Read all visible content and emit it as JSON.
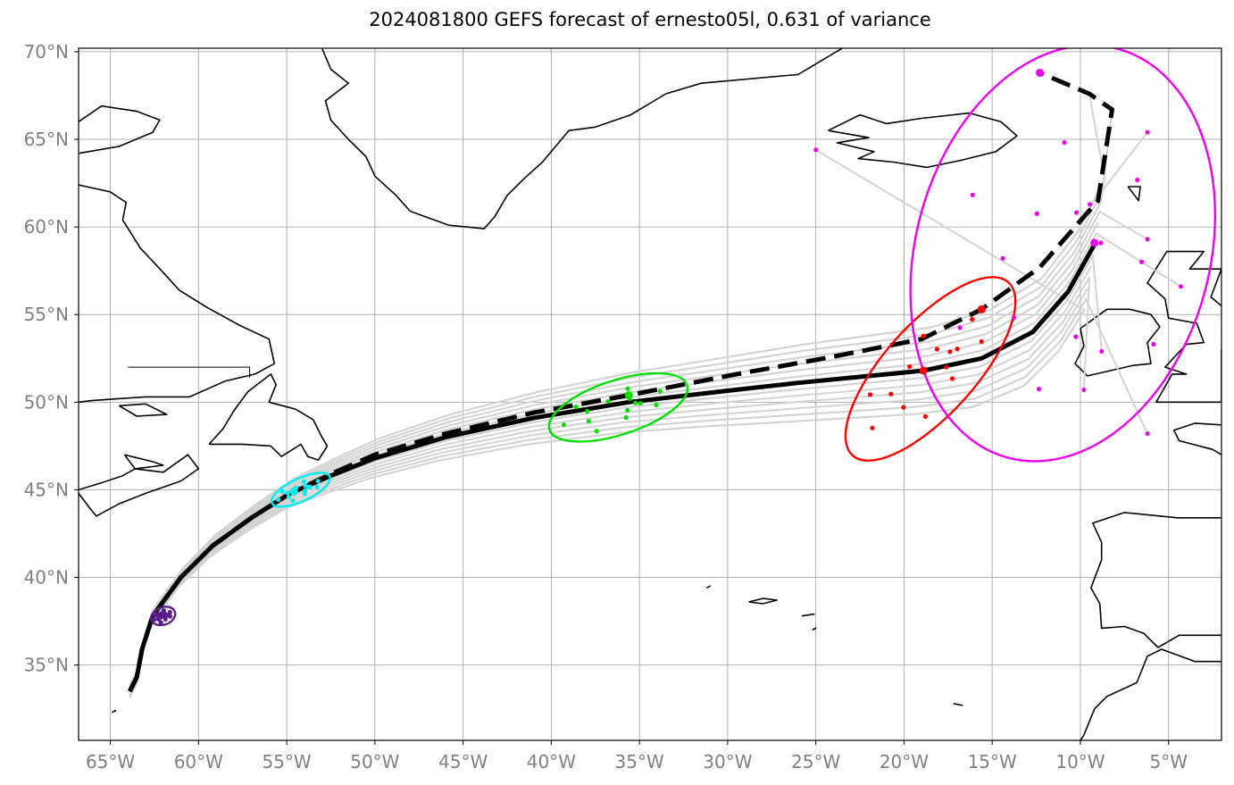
{
  "chart_data": {
    "type": "line",
    "title": "2024081800 GEFS forecast of ernesto05l, 0.631 of variance",
    "projection": "equirectangular",
    "xlim": [
      -66.8,
      -2.0
    ],
    "ylim": [
      30.7,
      70.2
    ],
    "grid": true,
    "colors": {
      "ensemble": "#d3d3d3",
      "mode1": "#000000",
      "mode2": "#000000",
      "coast": "#000000",
      "grid": "#b0b0b0",
      "tick": "#808080"
    },
    "x_ticks": [
      {
        "value": -65,
        "label": "65°W"
      },
      {
        "value": -60,
        "label": "60°W"
      },
      {
        "value": -55,
        "label": "55°W"
      },
      {
        "value": -50,
        "label": "50°W"
      },
      {
        "value": -45,
        "label": "45°W"
      },
      {
        "value": -40,
        "label": "40°W"
      },
      {
        "value": -35,
        "label": "35°W"
      },
      {
        "value": -30,
        "label": "30°W"
      },
      {
        "value": -25,
        "label": "25°W"
      },
      {
        "value": -20,
        "label": "20°W"
      },
      {
        "value": -15,
        "label": "15°W"
      },
      {
        "value": -10,
        "label": "10°W"
      },
      {
        "value": -5,
        "label": "5°W"
      }
    ],
    "y_ticks": [
      {
        "value": 35,
        "label": "35°N"
      },
      {
        "value": 40,
        "label": "40°N"
      },
      {
        "value": 45,
        "label": "45°N"
      },
      {
        "value": 50,
        "label": "50°N"
      },
      {
        "value": 55,
        "label": "55°N"
      },
      {
        "value": 60,
        "label": "60°N"
      },
      {
        "value": 65,
        "label": "65°N"
      },
      {
        "value": 70,
        "label": "70°N"
      }
    ],
    "mode_tracks": [
      {
        "style": "solid",
        "points": [
          [
            -63.9,
            33.5
          ],
          [
            -63.5,
            34.3
          ],
          [
            -63.2,
            35.9
          ],
          [
            -62.6,
            37.8
          ],
          [
            -61.0,
            40.0
          ],
          [
            -59.2,
            41.8
          ],
          [
            -57.0,
            43.4
          ],
          [
            -54.8,
            44.8
          ],
          [
            -52.5,
            45.8
          ],
          [
            -50.0,
            46.8
          ],
          [
            -46.0,
            48.0
          ],
          [
            -41.0,
            49.1
          ],
          [
            -35.6,
            50.0
          ],
          [
            -30.5,
            50.6
          ],
          [
            -26.0,
            51.1
          ],
          [
            -18.9,
            51.8
          ],
          [
            -15.6,
            52.5
          ],
          [
            -12.7,
            54.0
          ],
          [
            -10.7,
            56.3
          ],
          [
            -9.2,
            59.0
          ]
        ]
      },
      {
        "style": "dashed",
        "points": [
          [
            -63.9,
            33.5
          ],
          [
            -63.5,
            34.3
          ],
          [
            -63.2,
            35.9
          ],
          [
            -62.6,
            37.8
          ],
          [
            -61.0,
            40.0
          ],
          [
            -59.2,
            41.8
          ],
          [
            -57.0,
            43.4
          ],
          [
            -54.8,
            44.8
          ],
          [
            -52.5,
            45.9
          ],
          [
            -50.0,
            47.0
          ],
          [
            -46.0,
            48.2
          ],
          [
            -41.0,
            49.4
          ],
          [
            -35.6,
            50.4
          ],
          [
            -30.0,
            51.5
          ],
          [
            -24.0,
            52.6
          ],
          [
            -19.0,
            53.6
          ],
          [
            -15.6,
            55.3
          ],
          [
            -12.3,
            57.7
          ],
          [
            -9.0,
            61.5
          ],
          [
            -8.2,
            66.7
          ],
          [
            -9.5,
            67.6
          ],
          [
            -12.3,
            68.8
          ]
        ]
      }
    ],
    "mode_points": [
      {
        "lon": -62.2,
        "lat": 37.8,
        "color": "#5b1f8a"
      },
      {
        "lon": -54.6,
        "lat": 44.9,
        "color": "#00eeee"
      },
      {
        "lon": -35.6,
        "lat": 50.4,
        "color": "#00e000"
      },
      {
        "lon": -18.9,
        "lat": 51.8,
        "color": "#ff0000"
      },
      {
        "lon": -15.6,
        "lat": 55.3,
        "color": "#ff0000"
      },
      {
        "lon": -9.2,
        "lat": 59.1,
        "color": "#ee00ee"
      },
      {
        "lon": -12.3,
        "lat": 68.8,
        "color": "#ee00ee"
      }
    ],
    "ellipses": [
      {
        "center": [
          -62.0,
          37.8
        ],
        "semi_major_deg": 0.7,
        "semi_minor_deg": 0.5,
        "angle": 20,
        "color": "#5b1f8a"
      },
      {
        "center": [
          -54.2,
          45.0
        ],
        "semi_major_deg": 1.8,
        "semi_minor_deg": 0.65,
        "angle": 25,
        "color": "#00eeee"
      },
      {
        "center": [
          -36.2,
          49.7
        ],
        "semi_major_deg": 4.1,
        "semi_minor_deg": 1.55,
        "angle": 18,
        "color": "#00e000"
      },
      {
        "center": [
          -18.5,
          51.9
        ],
        "semi_major_deg": 6.6,
        "semi_minor_deg": 2.6,
        "angle": 48,
        "color": "#ff0000"
      },
      {
        "center": [
          -11.0,
          58.5
        ],
        "semi_major_deg": 12.0,
        "semi_minor_deg": 8.4,
        "angle": 75,
        "color": "#ee00ee"
      }
    ],
    "ensemble_endpoints": [
      {
        "lon": -25.0,
        "lat": 64.4
      },
      {
        "lon": -6.2,
        "lat": 65.4
      },
      {
        "lon": -6.2,
        "lat": 59.3
      },
      {
        "lon": -4.3,
        "lat": 56.6
      },
      {
        "lon": -8.8,
        "lat": 52.9
      },
      {
        "lon": -9.8,
        "lat": 50.7
      },
      {
        "lon": -6.2,
        "lat": 48.2
      },
      {
        "lon": -9.5,
        "lat": 67.6
      },
      {
        "lon": -8.2,
        "lat": 66.7
      }
    ]
  }
}
